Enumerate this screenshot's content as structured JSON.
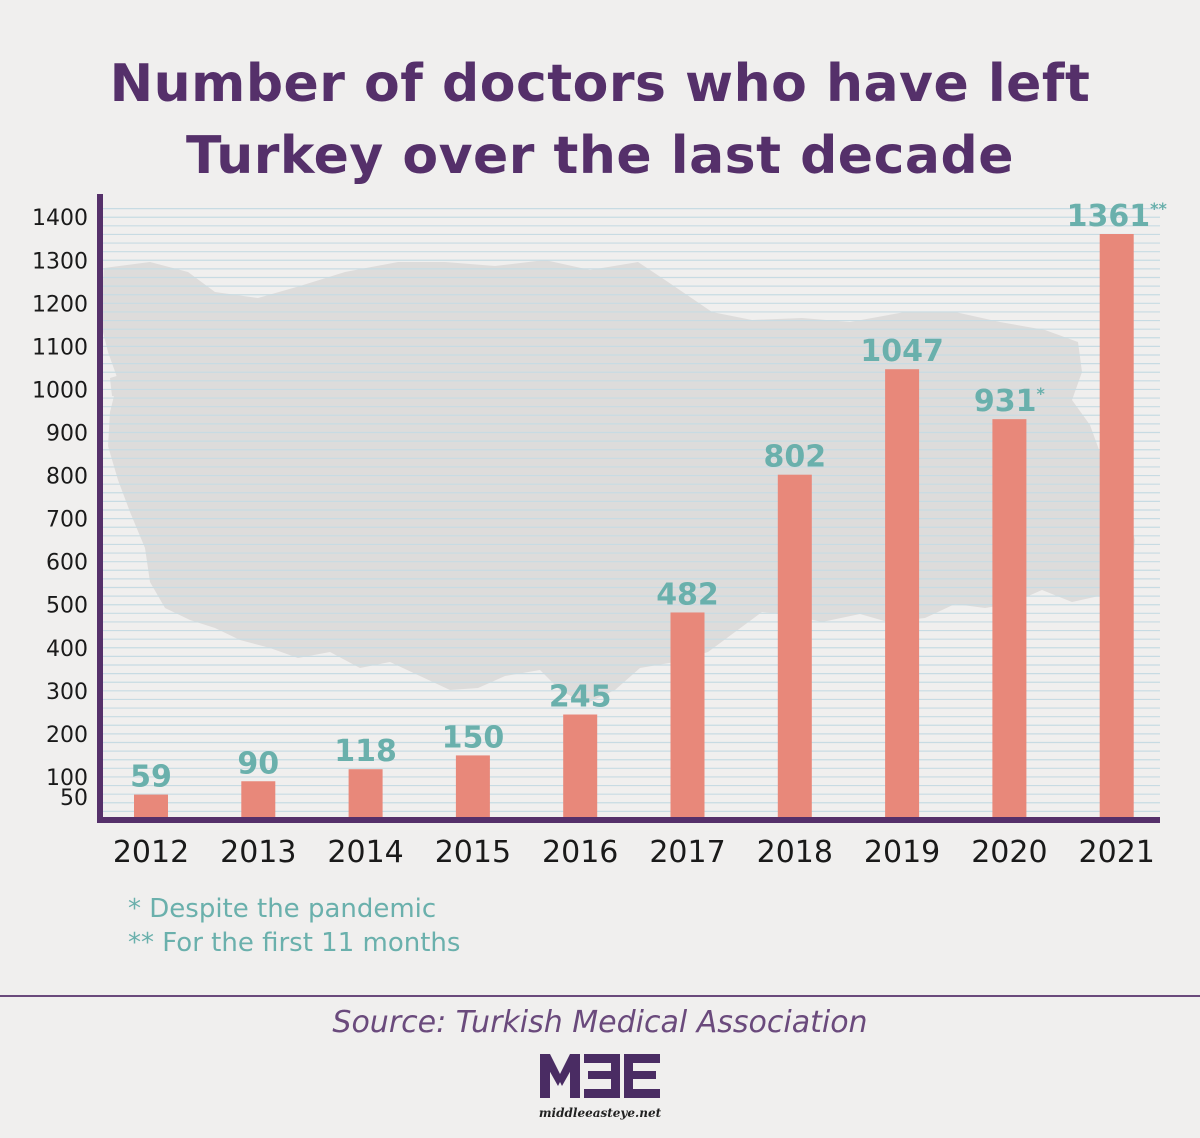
{
  "title_lines": [
    "Number of doctors who have left",
    "Turkey over the last decade"
  ],
  "colors": {
    "title": "#55306a",
    "bar": "#e8887a",
    "value_label": "#6ab0ac",
    "axis": "#55306a",
    "gridline": "#c7dbe3",
    "map": "#dddcdb"
  },
  "map_icon": "turkey-map-silhouette",
  "chart_data": {
    "type": "bar",
    "title": "Number of doctors who have left Turkey over the last decade",
    "categories": [
      "2012",
      "2013",
      "2014",
      "2015",
      "2016",
      "2017",
      "2018",
      "2019",
      "2020",
      "2021"
    ],
    "values": [
      59,
      90,
      118,
      150,
      245,
      482,
      802,
      1047,
      931,
      1361
    ],
    "value_labels": [
      "59",
      "90",
      "118",
      "150",
      "245",
      "482",
      "802",
      "1047",
      "931",
      "1361"
    ],
    "value_marks": [
      "",
      "",
      "",
      "",
      "",
      "",
      "",
      "",
      "*",
      "**"
    ],
    "y_ticks": [
      50,
      100,
      200,
      300,
      400,
      500,
      600,
      700,
      800,
      900,
      1000,
      1100,
      1200,
      1300,
      1400
    ],
    "ylim": [
      0,
      1440
    ],
    "xlabel": "",
    "ylabel": "",
    "grid": true
  },
  "notes": [
    "* Despite the pandemic",
    "** For the first 11 months"
  ],
  "source": "Source: Turkish Medical Association",
  "logo": {
    "mark": "MEE",
    "url": "middleeasteye.net"
  }
}
